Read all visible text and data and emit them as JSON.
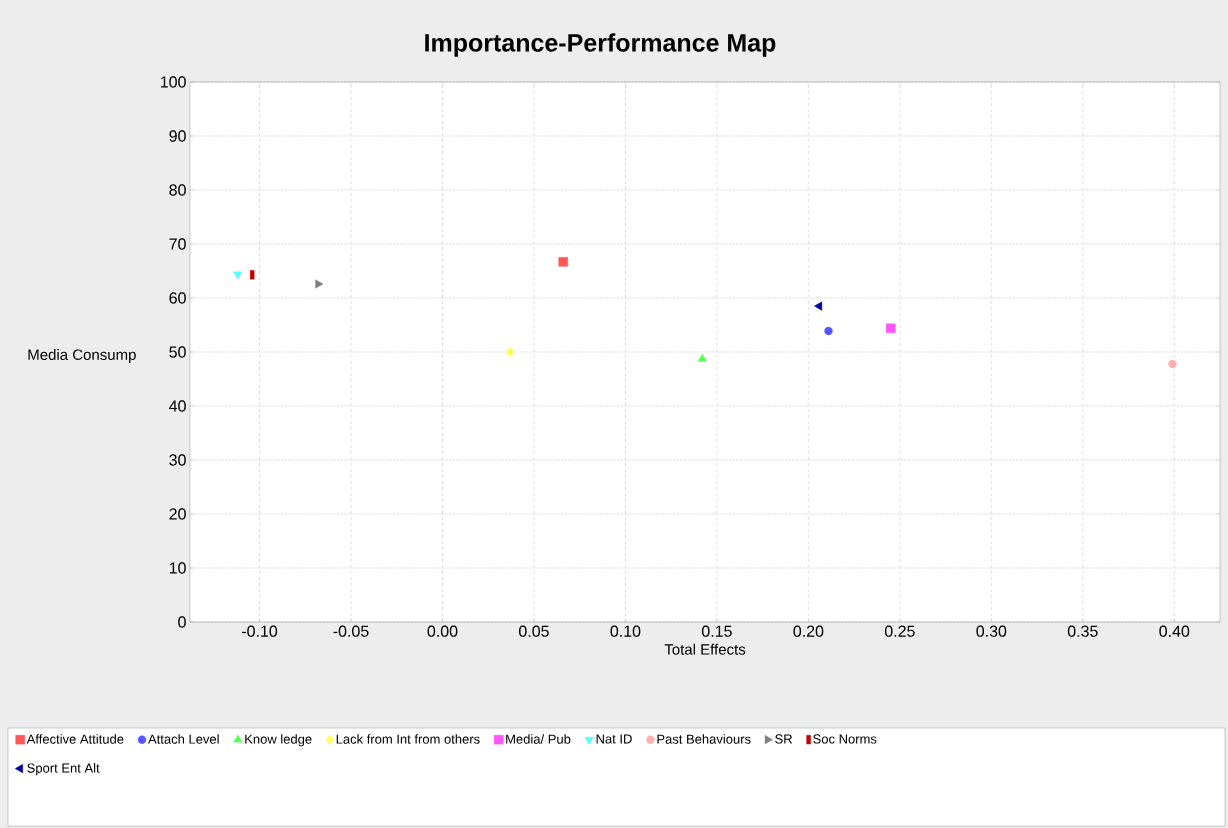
{
  "chart_data": {
    "type": "scatter",
    "title": "Importance-Performance Map",
    "xlabel": "Total Effects",
    "ylabel": "Media Consump",
    "xlim": [
      -0.138,
      0.425
    ],
    "ylim": [
      0,
      100
    ],
    "xticks": [
      {
        "value": -0.1,
        "label": "-0.10"
      },
      {
        "value": -0.05,
        "label": "-0.05"
      },
      {
        "value": 0,
        "label": "0.00"
      },
      {
        "value": 0.05,
        "label": "0.05"
      },
      {
        "value": 0.1,
        "label": "0.10"
      },
      {
        "value": 0.15,
        "label": "0.15"
      },
      {
        "value": 0.2,
        "label": "0.20"
      },
      {
        "value": 0.25,
        "label": "0.25"
      },
      {
        "value": 0.3,
        "label": "0.30"
      },
      {
        "value": 0.35,
        "label": "0.35"
      },
      {
        "value": 0.4,
        "label": "0.40"
      }
    ],
    "yticks": [
      0,
      10,
      20,
      30,
      40,
      50,
      60,
      70,
      80,
      90,
      100
    ],
    "grid": true,
    "legend": "bottom",
    "series": [
      {
        "name": "Affective Attitude",
        "color": "#ff5555",
        "marker": "square",
        "x": [
          0.066
        ],
        "values": [
          66.7
        ]
      },
      {
        "name": "Attach Level",
        "color": "#5555ff",
        "marker": "circle",
        "x": [
          0.211
        ],
        "values": [
          53.9
        ]
      },
      {
        "name": "Know ledge",
        "color": "#55ff55",
        "marker": "triangle",
        "x": [
          0.142
        ],
        "values": [
          48.7
        ]
      },
      {
        "name": "Lack from Int from others",
        "color": "#ffff55",
        "marker": "diamond",
        "x": [
          0.037
        ],
        "values": [
          50.0
        ]
      },
      {
        "name": "Media/ Pub",
        "color": "#ff55ff",
        "marker": "square",
        "x": [
          0.245
        ],
        "values": [
          54.4
        ]
      },
      {
        "name": "Nat ID",
        "color": "#55ffff",
        "marker": "triangle-down",
        "x": [
          -0.112
        ],
        "values": [
          64.4
        ]
      },
      {
        "name": "Past Behaviours",
        "color": "#ffafaf",
        "marker": "circle",
        "x": [
          0.399
        ],
        "values": [
          47.8
        ]
      },
      {
        "name": "SR",
        "color": "#808080",
        "marker": "triangle-right",
        "x": [
          -0.068
        ],
        "values": [
          62.6
        ]
      },
      {
        "name": "Soc Norms",
        "color": "#c00000",
        "marker": "rectangle",
        "x": [
          -0.104
        ],
        "values": [
          64.3
        ]
      },
      {
        "name": "Sport Ent Alt",
        "color": "#0000a0",
        "marker": "triangle-left",
        "x": [
          0.206
        ],
        "values": [
          58.5
        ]
      }
    ]
  }
}
